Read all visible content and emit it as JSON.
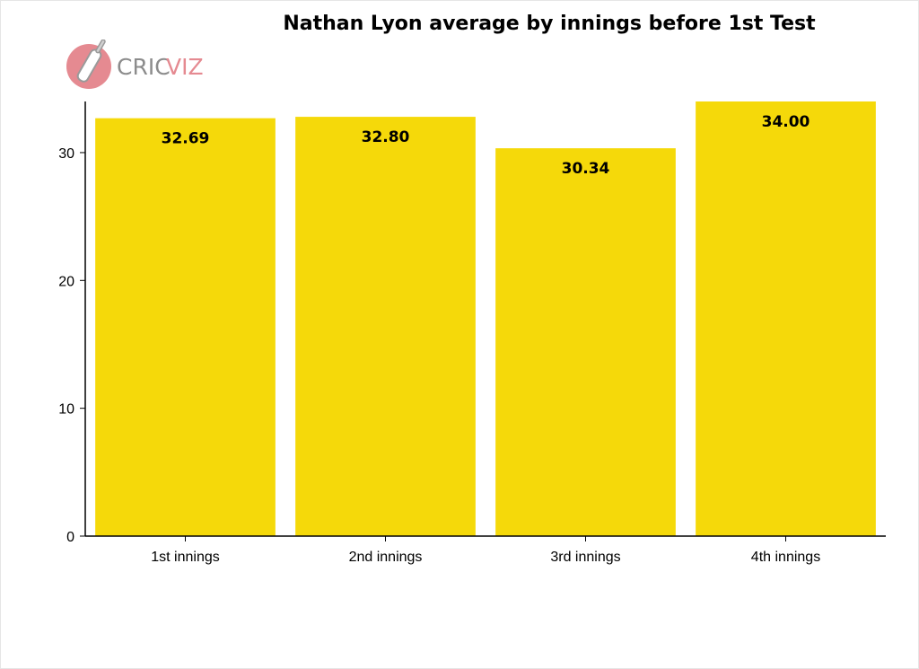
{
  "chart_data": {
    "type": "bar",
    "title": "Nathan Lyon average by innings before 1st Test",
    "xlabel": "",
    "ylabel": "",
    "categories": [
      "1st innings",
      "2nd innings",
      "3rd innings",
      "4th innings"
    ],
    "values": [
      32.69,
      32.8,
      30.34,
      34.0
    ],
    "value_labels": [
      "32.69",
      "32.80",
      "30.34",
      "34.00"
    ],
    "ylim": [
      0,
      34
    ],
    "yticks": [
      0,
      10,
      20,
      30
    ],
    "grid": false,
    "legend": "none",
    "bar_color": "#f5d90a"
  },
  "logo": {
    "text_cric": "CRIC",
    "text_viz": "VIZ",
    "icon": "cricket-bat-ball-icon",
    "color_accent": "#e58a91",
    "color_grey": "#8c8c8c"
  }
}
